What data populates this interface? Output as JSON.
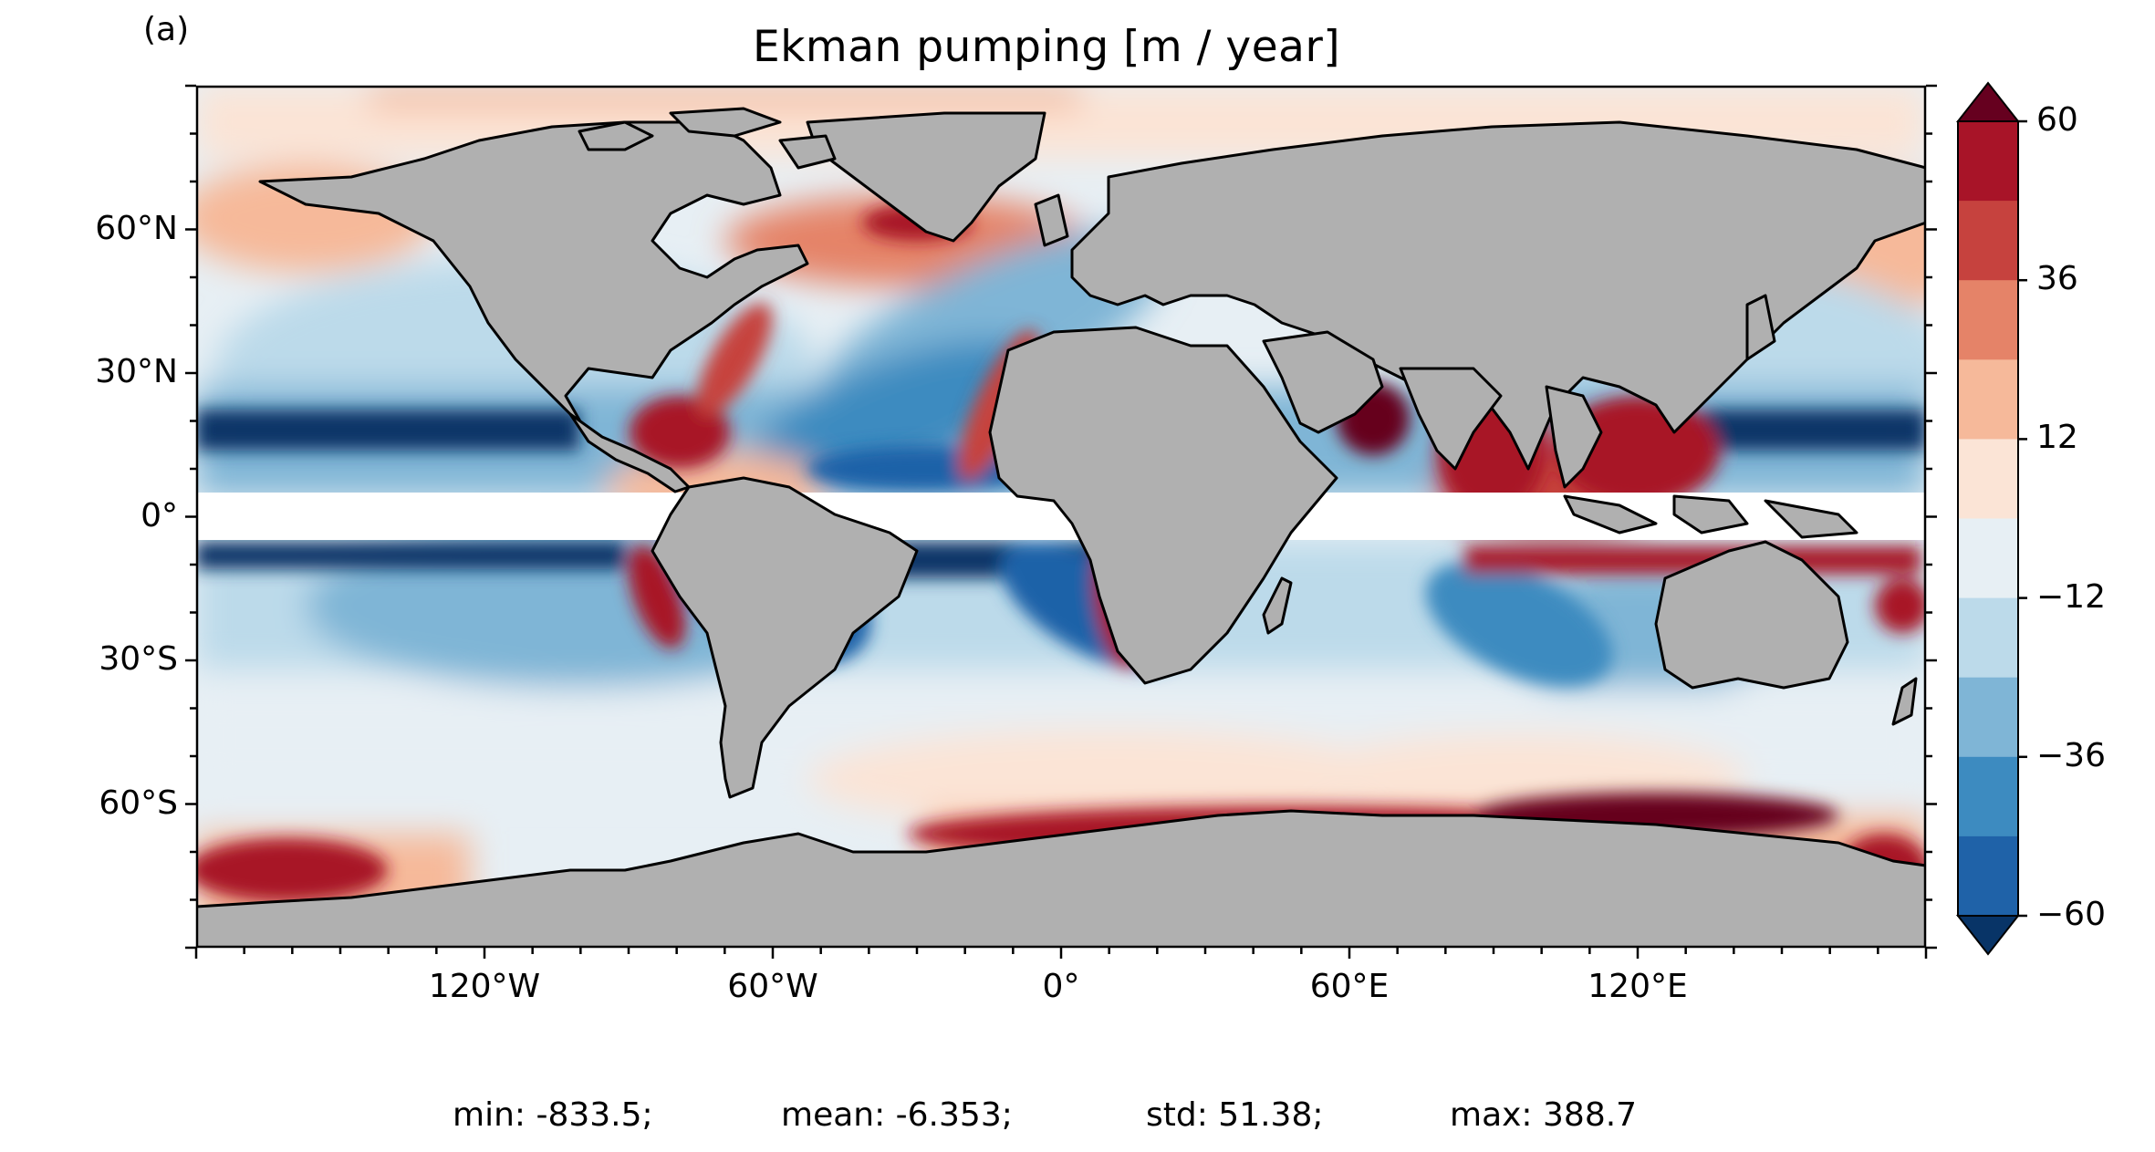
{
  "panel_label": "(a)",
  "title": "Ekman pumping [m / year]",
  "map": {
    "projection": "plate-carree",
    "extent_lon": [
      -180,
      180
    ],
    "extent_lat": [
      -90,
      90
    ],
    "land_color": "#b0b0b0",
    "masked_equatorial_band_lat": [
      -5,
      5
    ],
    "lon_ticks": [
      {
        "value": -120,
        "label": "120°W"
      },
      {
        "value": -60,
        "label": "60°W"
      },
      {
        "value": 0,
        "label": "0°"
      },
      {
        "value": 60,
        "label": "60°E"
      },
      {
        "value": 120,
        "label": "120°E"
      }
    ],
    "lat_ticks": [
      {
        "value": 60,
        "label": "60°N"
      },
      {
        "value": 30,
        "label": "30°N"
      },
      {
        "value": 0,
        "label": "0°"
      },
      {
        "value": -30,
        "label": "30°S"
      },
      {
        "value": -60,
        "label": "60°S"
      }
    ]
  },
  "colorbar": {
    "levels": [
      -60,
      -48,
      -36,
      -24,
      -12,
      0,
      12,
      24,
      36,
      48,
      60
    ],
    "tick_labels": [
      "60",
      "36",
      "12",
      "−12",
      "−36",
      "−60"
    ],
    "extend": "both",
    "colors": [
      "#083467",
      "#1f62a8",
      "#3d8bc0",
      "#7fb5d6",
      "#bcdaea",
      "#e7eff4",
      "#fbe4d6",
      "#f6b99a",
      "#e58368",
      "#c6423e",
      "#a81428",
      "#66001f"
    ]
  },
  "stats": {
    "min": "min: -833.5;",
    "mean": "mean: -6.353;",
    "std": "std: 51.38;",
    "max": "max: 388.7"
  }
}
